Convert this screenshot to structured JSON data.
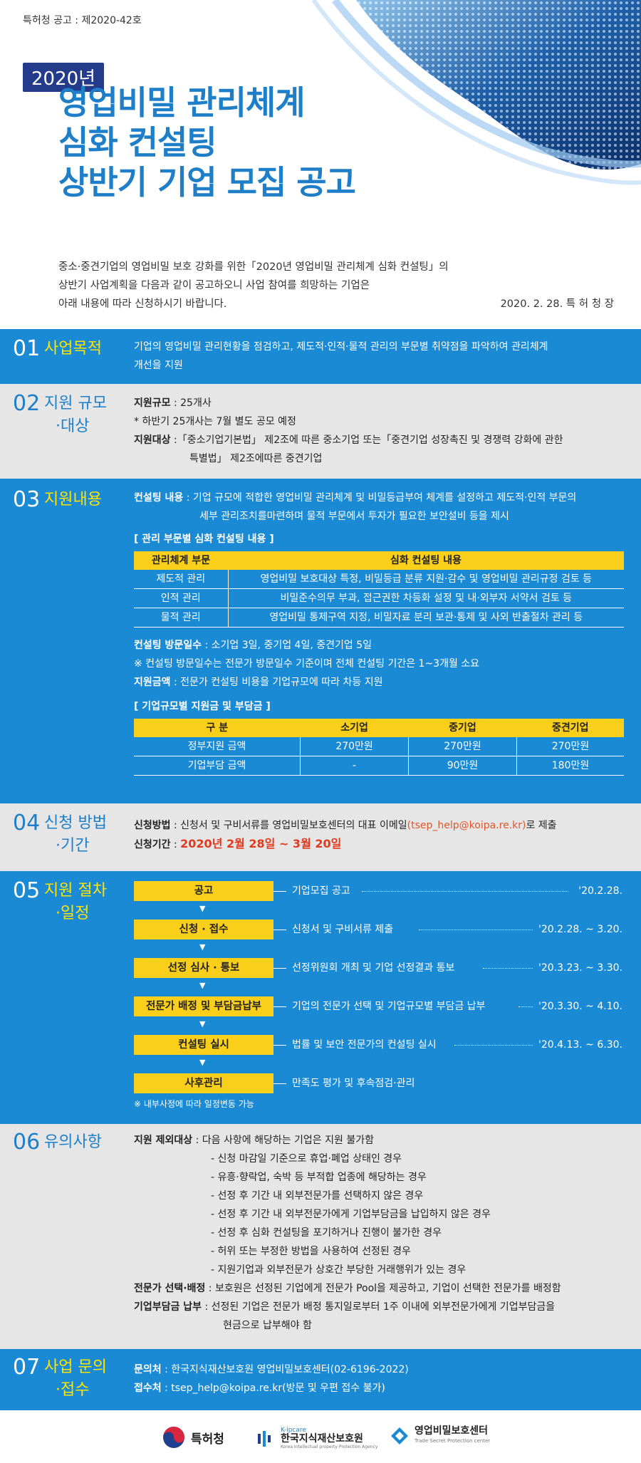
{
  "notice_no": "특허청 공고 : 제2020-42호",
  "year_badge": "2020년",
  "title_lines": [
    "영업비밀 관리체계",
    "심화 컨설팅",
    "상반기 기업 모집 공고"
  ],
  "intro": {
    "lines": [
      "중소·중견기업의 영업비밀 보호 강화를 위한「2020년 영업비밀 관리체계 심화 컨설팅」의",
      "상반기 사업계획을 다음과 같이 공고하오니 사업 참여를 희망하는 기업은",
      "아래 내용에 따라 신청하시기 바랍니다."
    ],
    "signature": "2020. 2. 28.   특 허 청 장"
  },
  "sec1": {
    "num": "01",
    "title": "사업목적",
    "lines": [
      "기업의 영업비밀 관리현황을 점검하고, 제도적·인적·물적 관리의 부문별 취약점을 파악하여 관리체계",
      "개선을 지원"
    ]
  },
  "sec2": {
    "num": "02",
    "title_1": "지원 규모",
    "title_2": "·대상",
    "scale_label": "지원규모",
    "scale_value": " : 25개사",
    "scale_note": "* 하반기 25개사는 7월 별도 공모 예정",
    "target_label": "지원대상",
    "target_value_1": " :「중소기업기본법」 제2조에 따른 중소기업 또는「중견기업 성장촉진 및 경쟁력 강화에 관한",
    "target_value_2": "특별법」 제2조에따른 중견기업"
  },
  "sec3": {
    "num": "03",
    "title": "지원내용",
    "consult_label": "컨설팅 내용",
    "consult_value_1": " : 기업 규모에 적합한 영업비밀 관리체계 및 비밀등급부여 체계를 설정하고 제도적·인적 부문의",
    "consult_value_2": "세부 관리조치를마련하며 물적 부문에서 투자가 필요한 보안설비 등을 제시",
    "table1_heading": "[ 관리 부문별 심화 컨설팅 내용 ]",
    "table1_headers": [
      "관리체계 부문",
      "심화 컨설팅 내용"
    ],
    "table1_rows": [
      [
        "제도적 관리",
        "영업비밀 보호대상 특정, 비밀등급 분류 지원·감수 및 영업비밀 관리규정 검토 등"
      ],
      [
        "인적 관리",
        "비밀준수의무 부과, 접근권한 차등화 설정 및 내·외부자 서약서 검토 등"
      ],
      [
        "물적 관리",
        "영업비밀 통제구역 지정, 비밀자료 분리 보관·통제 및 사외 반출절차 관리 등"
      ]
    ],
    "visit_label": "컨설팅 방문일수",
    "visit_value": " : 소기업 3일, 중기업 4일, 중견기업 5일",
    "visit_note": "※ 컨설팅 방문일수는 전문가 방문일수 기준이며 전체 컨설팅 기간은 1~3개월 소요",
    "amount_label": "지원금액",
    "amount_value": " : 전문가 컨설팅 비용을 기업규모에 따라 차등 지원",
    "table2_heading": "[ 기업규모별 지원금 및 부담금 ]",
    "table2_headers": [
      "구    분",
      "소기업",
      "중기업",
      "중견기업"
    ],
    "table2_rows": [
      [
        "정부지원 금액",
        "270만원",
        "270만원",
        "270만원"
      ],
      [
        "기업부담 금액",
        "-",
        "90만원",
        "180만원"
      ]
    ]
  },
  "sec4": {
    "num": "04",
    "title_1": "신청 방법",
    "title_2": "·기간",
    "method_label": "신청방법",
    "method_value_pre": " : 신청서 및 구비서류를 영업비밀보호센터의 대표 이메일",
    "method_email": "(tsep_help@koipa.re.kr)",
    "method_value_post": "로 제출",
    "period_label": "신청기간",
    "period_value": "2020년 2월 28일 ~ 3월 20일"
  },
  "sec5": {
    "num": "05",
    "title_1": "지원 절차",
    "title_2": "·일정",
    "steps": [
      {
        "name": "공고",
        "desc": "기업모집 공고",
        "date": "'20.2.28."
      },
      {
        "name": "신청 · 접수",
        "desc": "신청서 및 구비서류 제출",
        "date": "'20.2.28. ~ 3.20."
      },
      {
        "name": "선정 심사 · 통보",
        "desc": "선정위원회 개최 및 기업 선정결과 통보",
        "date": "'20.3.23. ~ 3.30."
      },
      {
        "name": "전문가 배정 및 부담금납부",
        "desc": "기업의 전문가 선택 및 기업규모별 부담금 납부",
        "date": "'20.3.30. ~ 4.10."
      },
      {
        "name": "컨설팅 실시",
        "desc": "법률 및 보안 전문가의 컨설팅 실시",
        "date": "'20.4.13. ~ 6.30."
      },
      {
        "name": "사후관리",
        "desc": "만족도 평가 및 후속점검·관리",
        "date": ""
      }
    ],
    "note": "※ 내부사정에 따라 일정변동 가능"
  },
  "sec6": {
    "num": "06",
    "title": "유의사항",
    "excl_label": "지원 제외대상",
    "excl_value": " : 다음 사항에 해당하는 기업은 지원 불가함",
    "excl_items": [
      "- 신청 마감일 기준으로 휴업·폐업 상태인 경우",
      "- 유흥·향락업, 숙박 등 부적합 업종에 해당하는 경우",
      "- 선정 후 기간 내 외부전문가를 선택하지 않은 경우",
      "- 선정 후 기간 내 외부전문가에게 기업부담금을 납입하지 않은 경우",
      "- 선정 후 심화 컨설팅을 포기하거나 진행이 불가한 경우",
      "- 허위 또는 부정한 방법을 사용하여 선정된 경우",
      "- 지원기업과 외부전문가 상호간 부당한 거래행위가 있는 경우"
    ],
    "expert_label": "전문가 선택·배정",
    "expert_value": " : 보호원은 선정된 기업에게 전문가 Pool을 제공하고, 기업이 선택한 전문가를 배정함",
    "pay_label": "기업부담금 납부",
    "pay_value_1": " : 선정된 기업은 전문가 배정 통지일로부터 1주 이내에 외부전문가에게 기업부담금을",
    "pay_value_2": "현금으로 납부해야 함"
  },
  "sec7": {
    "num": "07",
    "title_1": "사업 문의",
    "title_2": "·접수",
    "contact_label": "문의처",
    "contact_value": " : 한국지식재산보호원 영업비밀보호센터(02-6196-2022)",
    "receipt_label": "접수처",
    "receipt_value": " : tsep_help@koipa.re.kr(방문 및 우편 접수 불가)"
  },
  "footer": {
    "logo1": "특허청",
    "logo2_small": "K-ipcare",
    "logo2": "한국지식재산보호원",
    "logo2_sub": "Korea Intellectual property Protection Agency",
    "logo3": "영업비밀보호센터",
    "logo3_sub": "Trade Secret Protection center"
  },
  "colors": {
    "blue": "#1a8ad4",
    "yellow": "#f9cf1a",
    "title_blue": "#1e7fc8",
    "navy": "#243b8c"
  }
}
